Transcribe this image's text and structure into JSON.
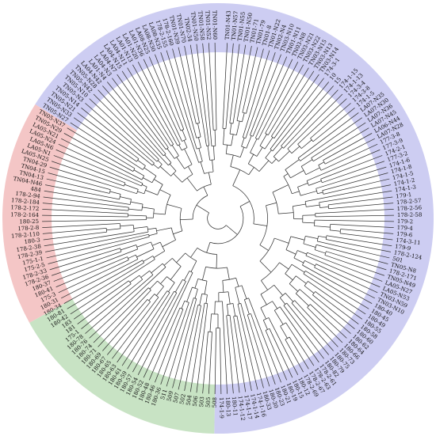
{
  "colors": {
    "clade_pink": "#f4c6c6",
    "clade_green": "#c8e3c4",
    "clade_blue": "#cdcdf2",
    "branch": "#333333"
  },
  "clade_ranges_deg": [
    {
      "name": "blue",
      "from": -58,
      "to": 181
    },
    {
      "name": "green",
      "from": 181,
      "to": 241
    },
    {
      "name": "pink",
      "from": 241,
      "to": 302
    }
  ],
  "tips": [
    "TN01-N43",
    "TN01-N57",
    "TN01-N55",
    "TN01-N50",
    "TN01-71",
    "TN01-79",
    "TN01-8",
    "TN01-N22",
    "TN02-N4",
    "TN03-N10",
    "TN01-N11",
    "TN03-N8",
    "TN03-N21",
    "TN03-N22",
    "TN03-N15",
    "TN03-N13",
    "TN03-N14",
    "174-3-1",
    "10",
    "15",
    "174-1-15",
    "174-1-13",
    "174-3-4",
    "174-3-8",
    "174-1-5",
    "LA07-N35",
    "LA07-N30",
    "LA07-N36",
    "LA07-N45",
    "LA06-N44",
    "LA07-N28",
    "177-3-8",
    "177-3-9",
    "174-2-1",
    "177-3-2",
    "174-1-6",
    "174-1-8",
    "174-1-5",
    "174-1-2",
    "174-1-3",
    "179-1",
    "178-2-57",
    "178-2-56",
    "178-2-58",
    "179-2",
    "179-4",
    "179-6",
    "174-3-11",
    "179-9",
    "178-2-124",
    "501",
    "TN05-N8",
    "178-2-171",
    "TN05-N49",
    "LA05-N27",
    "LA05-N53",
    "TN03-N59",
    "TN03-N10",
    "180-40",
    "180-45",
    "180-49",
    "180-55",
    "180-58",
    "180-60",
    "180-62",
    "180-64",
    "180-66",
    "180-73",
    "180-75",
    "180-79",
    "180-82",
    "178-2-61",
    "178-2-63",
    "178-2-67",
    "178-2-69",
    "180-12",
    "180-15",
    "180-19",
    "180-21",
    "180-23",
    "180-30",
    "180-33",
    "174-1-16",
    "174-1-14",
    "174-1-17",
    "174-1-12",
    "180-11",
    "180-13",
    "174-1-9",
    "508",
    "505",
    "503",
    "506",
    "504",
    "502",
    "507",
    "509",
    "511",
    "180-36",
    "180-46",
    "180-48",
    "180-52",
    "180-54",
    "180-57",
    "180-59",
    "180-61",
    "180-63",
    "180-65",
    "180-67",
    "180-69",
    "180-71",
    "180-74",
    "180-76",
    "180-78",
    "175-1",
    "181",
    "183",
    "180-42",
    "180-81",
    "180-34",
    "180-31",
    "175-3",
    "180-41",
    "180-37",
    "178-2-36",
    "178-2-33",
    "175-2-5",
    "175-1-1",
    "178-2-39",
    "178-2-38",
    "180-3",
    "178-2-110",
    "178-2-8",
    "180-25",
    "178-2-164",
    "178-2-172",
    "178-2-184",
    "178-2-94",
    "484",
    "TN04-N46",
    "TN04-13",
    "TN04-15",
    "TN04-29",
    "LA05-N25",
    "LA05-N1",
    "LA05-N6",
    "LA05-N24",
    "LA05-N21",
    "TN05-N29",
    "TN05-N37",
    "TN05-N27",
    "TN05-N33",
    "TN05-N21",
    "TN05-N14",
    "TN05-N3",
    "TN05-N10",
    "TN05-N42",
    "TN05-N28",
    "LA04-N42",
    "LA01-N4",
    "LA04-N3",
    "LA04-N7",
    "LA04-N15",
    "LA04-N11",
    "LA01-N13",
    "LA01-N20",
    "LA01-N36",
    "LA08-N25",
    "LA08-N30",
    "LA08-N35",
    "178-2-155",
    "178-2-160",
    "TN01-N39",
    "TN01-N70",
    "TN02-34",
    "TN01-N50",
    "TN01-N58",
    "TN01-N52",
    "TN01-N60"
  ]
}
